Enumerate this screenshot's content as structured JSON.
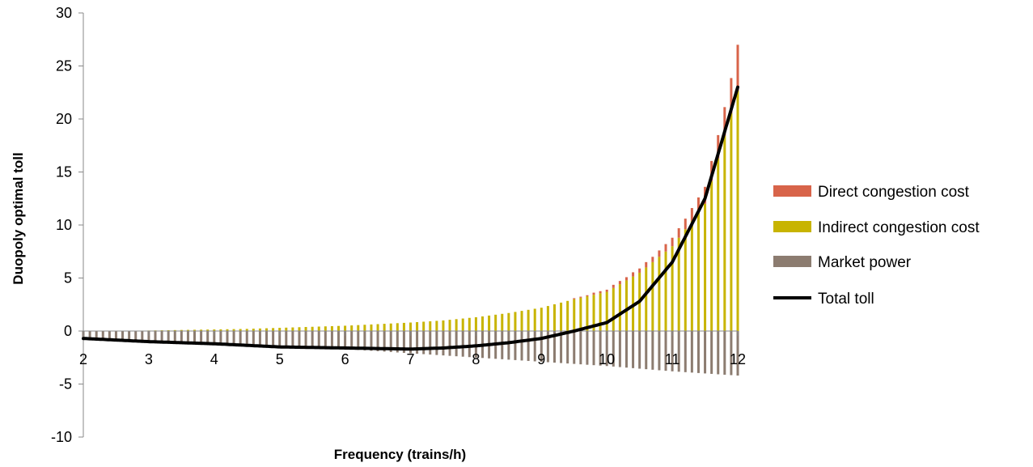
{
  "chart_data": {
    "type": "bar",
    "xlabel": "Frequency (trains/h)",
    "ylabel": "Duopoly optimal toll",
    "xlim": [
      2,
      12
    ],
    "ylim": [
      -10,
      30
    ],
    "x_ticks": [
      "2",
      "3",
      "4",
      "5",
      "6",
      "7",
      "8",
      "9",
      "10",
      "11",
      "12"
    ],
    "y_ticks": [
      "-10",
      "-5",
      "0",
      "5",
      "10",
      "15",
      "20",
      "25",
      "30"
    ],
    "grid": false,
    "legend_position": "right",
    "bar_step": 0.1,
    "series": [
      {
        "name": "Direct congestion cost",
        "color": "#d8644a",
        "x": [
          9.5,
          9.6,
          9.7,
          9.8,
          9.9,
          10.0,
          10.1,
          10.2,
          10.3,
          10.4,
          10.5,
          10.6,
          10.7,
          10.8,
          10.9,
          11.0,
          11.1,
          11.2,
          11.3,
          11.4,
          11.5,
          11.6,
          11.7,
          11.8,
          11.9,
          12.0
        ],
        "values": [
          0.1,
          0.1,
          0.1,
          0.2,
          0.2,
          0.2,
          0.3,
          0.3,
          0.3,
          0.4,
          0.4,
          0.5,
          0.5,
          0.6,
          0.7,
          0.8,
          0.9,
          1.0,
          1.2,
          1.4,
          1.6,
          1.9,
          2.2,
          2.7,
          3.3,
          4.3
        ]
      },
      {
        "name": "Indirect congestion cost",
        "color": "#c8b400",
        "x": [
          2.0,
          2.5,
          3.0,
          3.5,
          4.0,
          4.5,
          5.0,
          5.5,
          6.0,
          6.5,
          7.0,
          7.5,
          8.0,
          8.5,
          9.0,
          9.5,
          10.0,
          10.5,
          11.0,
          11.5,
          12.0
        ],
        "values": [
          0.0,
          0.0,
          0.05,
          0.1,
          0.15,
          0.2,
          0.3,
          0.4,
          0.5,
          0.65,
          0.8,
          1.0,
          1.3,
          1.7,
          2.2,
          3.0,
          3.7,
          5.5,
          8.0,
          12.0,
          22.7
        ]
      },
      {
        "name": "Market power",
        "color": "#8c7c70",
        "x": [
          2.0,
          3.0,
          4.0,
          5.0,
          6.0,
          7.0,
          8.0,
          9.0,
          10.0,
          11.0,
          12.0
        ],
        "values": [
          -0.7,
          -0.9,
          -1.1,
          -1.4,
          -1.7,
          -2.1,
          -2.5,
          -2.9,
          -3.3,
          -3.8,
          -4.2
        ]
      },
      {
        "name": "Total toll",
        "type": "line",
        "color": "#000000",
        "x": [
          2.0,
          3.0,
          4.0,
          5.0,
          6.0,
          7.0,
          7.5,
          8.0,
          8.5,
          9.0,
          9.5,
          10.0,
          10.5,
          11.0,
          11.5,
          12.0
        ],
        "values": [
          -0.7,
          -1.0,
          -1.2,
          -1.5,
          -1.6,
          -1.7,
          -1.6,
          -1.4,
          -1.1,
          -0.7,
          0.0,
          0.8,
          2.8,
          6.5,
          12.5,
          23.0
        ]
      }
    ]
  }
}
